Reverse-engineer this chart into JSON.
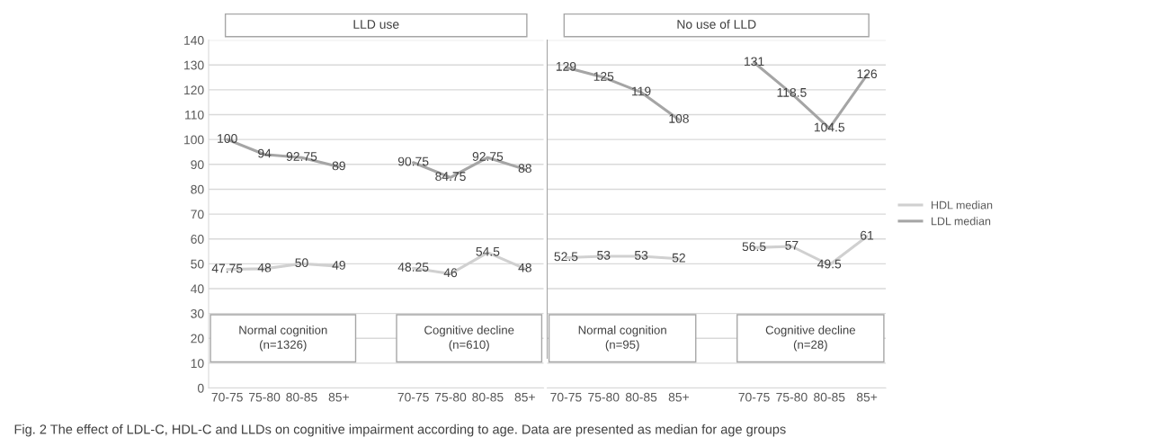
{
  "chart_data": [
    {
      "type": "line",
      "title": "LLD use",
      "categories": [
        "70-75",
        "75-80",
        "80-85",
        "85+",
        null,
        "70-75",
        "75-80",
        "80-85",
        "85+"
      ],
      "series": [
        {
          "color": "#d0d0d0",
          "values": [
            47.75,
            48,
            50,
            49,
            null,
            48.25,
            46,
            54.5,
            48
          ]
        },
        {
          "color": "#a5a5a5",
          "values": [
            100,
            94,
            92.75,
            89,
            null,
            90.75,
            84.75,
            92.75,
            88
          ]
        }
      ],
      "ylim": [
        0,
        140
      ],
      "yticks": [
        0,
        10,
        20,
        30,
        40,
        50,
        60,
        70,
        80,
        90,
        100,
        110,
        120,
        130,
        140
      ],
      "grid": "y",
      "data_labels": true,
      "marker": "none",
      "line_style": "solid",
      "annotations": [
        "Normal cognition\n(n=1326)",
        "Cognitive decline\n(n=610)",
        "Fig. 2 The effect of LDL-C, HDL-C and LLDs on cognitive impairment according to age. Data are presented as median for age groups"
      ]
    },
    {
      "type": "line",
      "title": "No use of LLD",
      "categories": [
        "70-75",
        "75-80",
        "80-85",
        "85+",
        null,
        "70-75",
        "75-80",
        "80-85",
        "85+"
      ],
      "series": [
        {
          "name": "HDL median",
          "color": "#d0d0d0",
          "values": [
            52.5,
            53,
            53,
            52,
            null,
            56.5,
            57,
            49.5,
            61
          ]
        },
        {
          "name": "LDL median",
          "color": "#a5a5a5",
          "values": [
            129,
            125,
            119,
            108,
            null,
            131,
            118.5,
            104.5,
            126
          ]
        }
      ],
      "ylim": [
        0,
        140
      ],
      "yticks": [
        0,
        10,
        20,
        30,
        40,
        50,
        60,
        70,
        80,
        90,
        100,
        110,
        120,
        130,
        140
      ],
      "grid": "y",
      "legend": "right",
      "data_labels": true,
      "marker": "none",
      "line_style": "solid",
      "tick_labels": "x",
      "annotations": [
        "Normal cognition\n(n=95)",
        "Cognitive decline\n(n=28)"
      ]
    }
  ]
}
